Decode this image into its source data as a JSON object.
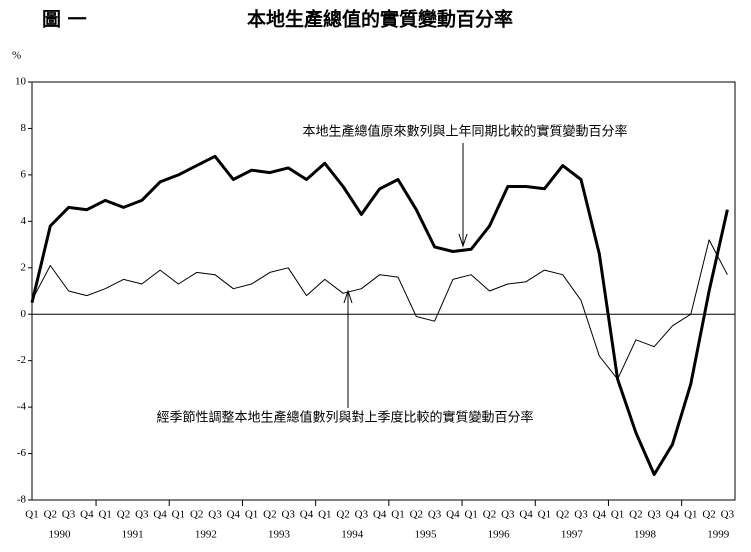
{
  "chart_data": {
    "type": "line",
    "figure_label": "圖 一",
    "title": "本地生產總值的實質變動百分率",
    "y_label": "%",
    "categories": [
      "Q1",
      "Q2",
      "Q3",
      "Q4",
      "Q1",
      "Q2",
      "Q3",
      "Q4",
      "Q1",
      "Q2",
      "Q3",
      "Q4",
      "Q1",
      "Q2",
      "Q3",
      "Q4",
      "Q1",
      "Q2",
      "Q3",
      "Q4",
      "Q1",
      "Q2",
      "Q3",
      "Q4",
      "Q1",
      "Q2",
      "Q3",
      "Q4",
      "Q1",
      "Q2",
      "Q3",
      "Q4",
      "Q1",
      "Q2",
      "Q3",
      "Q4",
      "Q1",
      "Q2",
      "Q3"
    ],
    "years": [
      "1990",
      "1991",
      "1992",
      "1993",
      "1994",
      "1995",
      "1996",
      "1997",
      "1998",
      "1999"
    ],
    "series": [
      {
        "name": "本地生產總值原來數列與上年同期比較的實質變動百分率",
        "color": "#000000",
        "values": [
          0.5,
          3.8,
          4.6,
          4.5,
          4.9,
          4.6,
          4.9,
          5.7,
          6.0,
          6.4,
          6.8,
          5.8,
          6.2,
          6.1,
          6.3,
          5.8,
          6.5,
          5.5,
          4.3,
          5.4,
          5.8,
          4.5,
          2.9,
          2.7,
          2.8,
          3.8,
          5.5,
          5.5,
          5.4,
          6.4,
          5.8,
          2.6,
          -2.8,
          -5.1,
          -6.9,
          -5.6,
          -3.0,
          1.0,
          4.5
        ]
      },
      {
        "name": "經季節性調整本地生產總值數列與對上季度比較的實質變動百分率",
        "color": "#000000",
        "values": [
          0.6,
          2.1,
          1.0,
          0.8,
          1.1,
          1.5,
          1.3,
          1.9,
          1.3,
          1.8,
          1.7,
          1.1,
          1.3,
          1.8,
          2.0,
          0.8,
          1.5,
          0.9,
          1.1,
          1.7,
          1.6,
          -0.1,
          -0.3,
          1.5,
          1.7,
          1.0,
          1.3,
          1.4,
          1.9,
          1.7,
          0.6,
          -1.8,
          -2.8,
          -1.1,
          -1.4,
          -0.5,
          0.0,
          3.2,
          1.7
        ]
      }
    ],
    "ylim": [
      -8,
      10
    ],
    "yticks": [
      -8,
      -6,
      -4,
      -2,
      0,
      2,
      4,
      6,
      8,
      10
    ]
  }
}
